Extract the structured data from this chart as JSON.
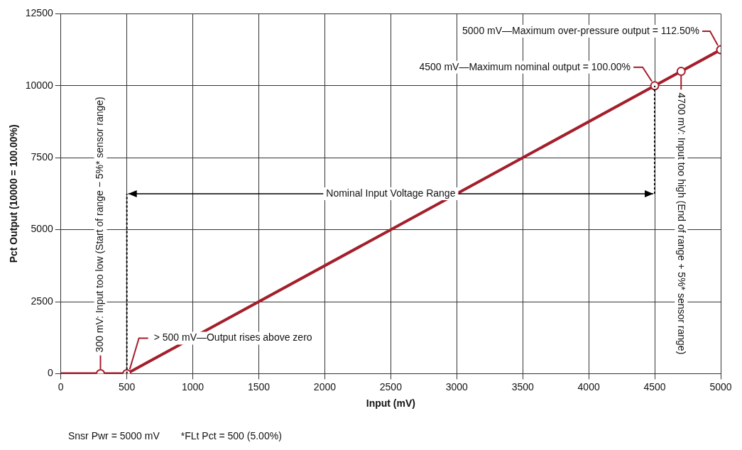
{
  "chart_data": {
    "type": "line",
    "xlabel": "Input (mV)",
    "ylabel": "Pct Output (10000 = 100.00%)",
    "xlim": [
      0,
      5000
    ],
    "xticks": [
      0,
      500,
      1000,
      1500,
      2000,
      2500,
      3000,
      3500,
      4000,
      4500,
      5000
    ],
    "ylim": [
      0,
      12500
    ],
    "yticks": [
      0,
      2500,
      5000,
      7500,
      10000,
      12500
    ],
    "grid": true,
    "legend": false,
    "series": [
      {
        "type": "line",
        "color": "#a31f2b",
        "marker": "none",
        "x": [
          0,
          300,
          500,
          4500,
          4700,
          5000
        ],
        "values": [
          0,
          0,
          0,
          10000,
          10500,
          11250
        ]
      },
      {
        "type": "scatter",
        "color": "#a31f2b",
        "marker": "circle",
        "x": [
          300,
          500,
          4500,
          4700,
          5000
        ],
        "values": [
          0,
          0,
          10000,
          10500,
          11250
        ]
      }
    ],
    "ref_lines": [
      {
        "axis": "x",
        "value": 500,
        "line_style": "dotted",
        "color": "#000000"
      },
      {
        "axis": "x",
        "value": 4500,
        "line_style": "dotted",
        "color": "#000000"
      }
    ],
    "annotations": [
      {
        "text": "5000 mV—Maximum over-pressure output = 112.50%",
        "x": 5000,
        "y": 11250
      },
      {
        "text": "4500 mV—Maximum nominal output = 100.00%",
        "x": 4500,
        "y": 10000
      },
      {
        "text": "4700 mV: Input too high (End of range + 5%* sensor range)",
        "x": 4700,
        "y": 10500
      },
      {
        "text": "300 mV: Input too low (Start of range − 5%* sensor range)",
        "x": 300,
        "y": 0
      },
      {
        "text": "> 500 mV—Output rises above zero",
        "x": 500,
        "y": 0
      },
      "Nominal Input Voltage Range",
      "Snsr Pwr = 5000 mV",
      "*FLt Pct = 500 (5.00%)"
    ]
  }
}
